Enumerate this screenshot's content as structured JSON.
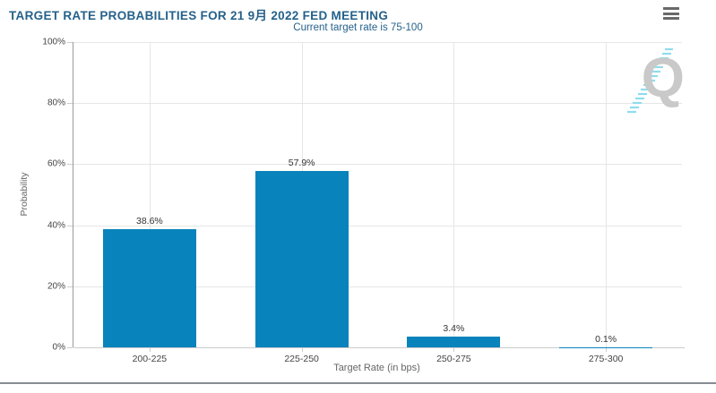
{
  "header": {
    "title": "TARGET RATE PROBABILITIES FOR 21 9月 2022 FED MEETING",
    "subtitle": "Current target rate is 75-100"
  },
  "toolbar": {
    "menu_icon": "hamburger-menu"
  },
  "watermark": {
    "letter": "Q"
  },
  "colors": {
    "bar": "#0883bc",
    "title_text": "#25618a",
    "gridline": "#e6e6e6",
    "watermark_gray": "#c9c9c9",
    "watermark_cyan": "#8edcec",
    "bottom_border": "#858c93"
  },
  "chart_data": {
    "type": "bar",
    "title": "TARGET RATE PROBABILITIES FOR 21 9月 2022 FED MEETING",
    "subtitle": "Current target rate is 75-100",
    "categories": [
      "200-225",
      "225-250",
      "250-275",
      "275-300"
    ],
    "values": [
      38.6,
      57.9,
      3.4,
      0.1
    ],
    "value_labels": [
      "38.6%",
      "57.9%",
      "3.4%",
      "0.1%"
    ],
    "xlabel": "Target Rate (in bps)",
    "ylabel": "Probability",
    "ylim": [
      0,
      100
    ],
    "yticks": [
      0,
      20,
      40,
      60,
      80,
      100
    ],
    "ytick_labels": [
      "0%",
      "20%",
      "40%",
      "60%",
      "80%",
      "100%"
    ],
    "grid": true,
    "legend": "none"
  }
}
